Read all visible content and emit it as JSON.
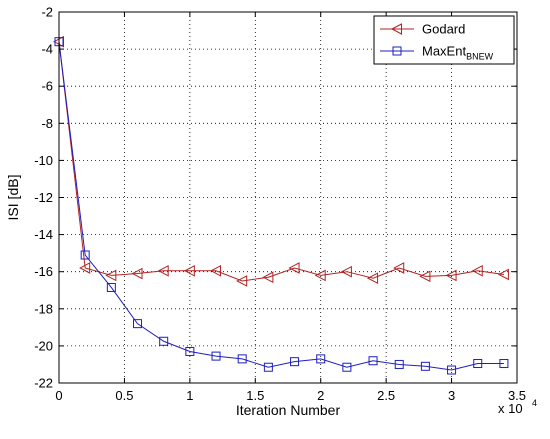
{
  "chart_data": {
    "type": "line",
    "xlabel": "Iteration Number",
    "ylabel": "ISI [dB]",
    "x_multiplier": "x 10",
    "x_multiplier_exp": "4",
    "xlim": [
      0,
      35000
    ],
    "ylim": [
      -22,
      -2
    ],
    "xticks": [
      0,
      5000,
      10000,
      15000,
      20000,
      25000,
      30000,
      35000
    ],
    "xtick_labels": [
      "0",
      "0.5",
      "1",
      "1.5",
      "2",
      "2.5",
      "3",
      "3.5"
    ],
    "yticks": [
      -2,
      -4,
      -6,
      -8,
      -10,
      -12,
      -14,
      -16,
      -18,
      -20,
      -22
    ],
    "ytick_labels": [
      "-2",
      "-4",
      "-6",
      "-8",
      "-10",
      "-12",
      "-14",
      "-16",
      "-18",
      "-20",
      "-22"
    ],
    "grid": true,
    "legend_position": "top-right",
    "series": [
      {
        "name": "Godard",
        "color": "#b22222",
        "marker": "triangle-left",
        "x": [
          0,
          2000,
          4000,
          6000,
          8000,
          10000,
          12000,
          14000,
          16000,
          18000,
          20000,
          22000,
          24000,
          26000,
          28000,
          30000,
          32000,
          34000
        ],
        "y": [
          -3.6,
          -15.8,
          -16.2,
          -16.1,
          -15.95,
          -15.95,
          -15.95,
          -16.5,
          -16.3,
          -15.8,
          -16.2,
          -16.0,
          -16.35,
          -15.8,
          -16.25,
          -16.2,
          -15.95,
          -16.15
        ]
      },
      {
        "name": "MaxEnt",
        "name_sub": "BNEW",
        "color": "#1f1fbf",
        "marker": "square",
        "x": [
          0,
          2000,
          4000,
          6000,
          8000,
          10000,
          12000,
          14000,
          16000,
          18000,
          20000,
          22000,
          24000,
          26000,
          28000,
          30000,
          32000,
          34000
        ],
        "y": [
          -3.6,
          -15.1,
          -16.85,
          -18.8,
          -19.75,
          -20.3,
          -20.55,
          -20.7,
          -21.15,
          -20.85,
          -20.7,
          -21.15,
          -20.8,
          -21.0,
          -21.1,
          -21.3,
          -20.95,
          -20.95
        ]
      }
    ]
  }
}
